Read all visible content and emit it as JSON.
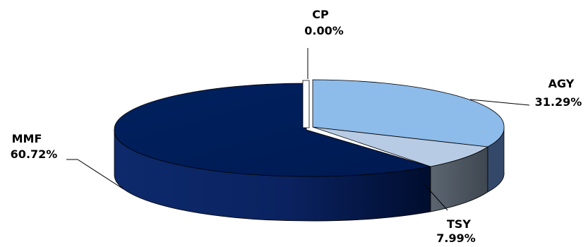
{
  "chart_data": {
    "type": "pie",
    "style": "3d-exploded",
    "slices": [
      {
        "label": "CP",
        "pct_text": "0.00%",
        "value": 0.0,
        "color": "#ffffff"
      },
      {
        "label": "AGY",
        "pct_text": "31.29%",
        "value": 31.29,
        "color": "#8dbbea"
      },
      {
        "label": "TSY",
        "pct_text": "7.99%",
        "value": 7.99,
        "color": "#b8cbe4"
      },
      {
        "label": "MMF",
        "pct_text": "60.72%",
        "value": 60.72,
        "color": "#001a57"
      }
    ],
    "side_colors": {
      "AGY": "#34496a",
      "TSY": "#4b5560",
      "MMF": "#0c2258"
    }
  }
}
